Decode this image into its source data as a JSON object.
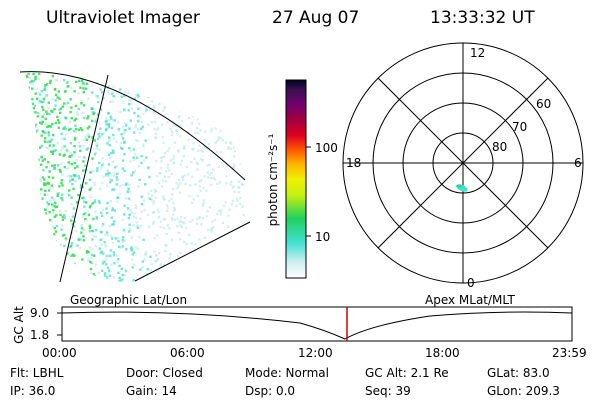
{
  "header": {
    "instrument": "Ultraviolet Imager",
    "date": "27 Aug 07",
    "time": "13:33:32 UT"
  },
  "colorbar": {
    "label": "photon cm⁻²s⁻¹",
    "ticks": [
      "100",
      "10"
    ]
  },
  "polar_plot": {
    "mlt_labels": [
      "12",
      "18",
      "6",
      "0"
    ],
    "lat_labels": [
      "60",
      "70",
      "80"
    ]
  },
  "altitude_strip": {
    "ylabel": "GC Alt",
    "ticks": [
      "9.0",
      "1.8"
    ],
    "left_title": "Geographic Lat/Lon",
    "right_title": "Apex MLat/MLT",
    "time_ticks": [
      "00:00",
      "06:00",
      "12:00",
      "18:00",
      "23:59"
    ],
    "cursor_time": "13:33"
  },
  "info": {
    "flt": "Flt: LBHL",
    "door": "Door: Closed",
    "mode": "Mode: Normal",
    "gcalt": "GC Alt: 2.1 Re",
    "glat": "GLat:  83.0",
    "ip": "IP: 36.0",
    "gain": "Gain: 14",
    "dsp": "Dsp:    0.0",
    "seq": "Seq: 39",
    "glon": "GLon: 209.3"
  },
  "colors": {
    "cursor": "#d40000",
    "aurora_bright": "#3adf5a",
    "aurora_mid": "#40e0d0",
    "aurora_faint": "#b8e6ea"
  }
}
